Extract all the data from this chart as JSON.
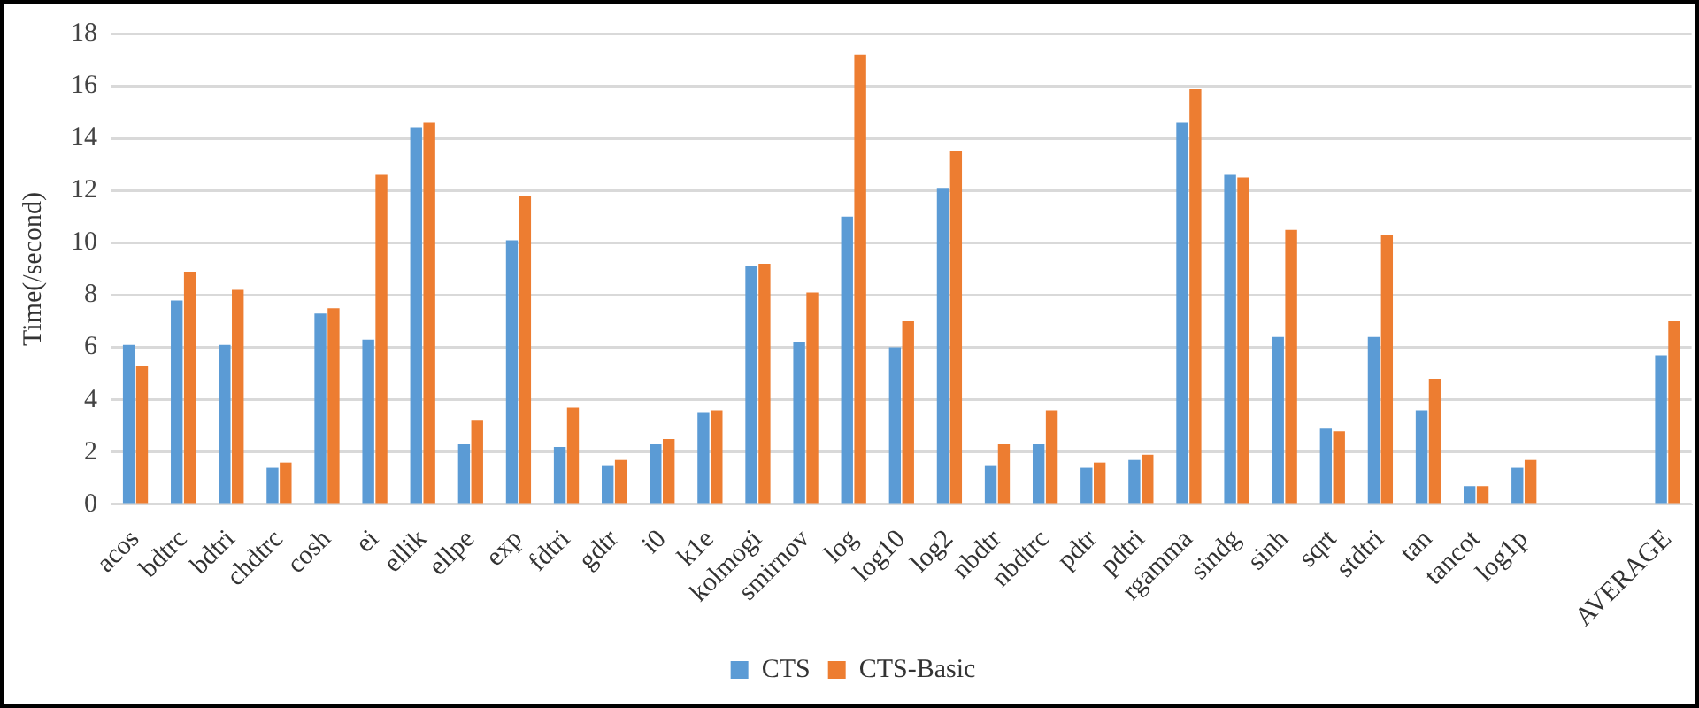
{
  "chart_data": {
    "type": "bar",
    "ylabel": "Time(/second)",
    "categories": [
      "acos",
      "bdtrc",
      "bdtri",
      "chdtrc",
      "cosh",
      "ei",
      "ellik",
      "ellpe",
      "exp",
      "fdtri",
      "gdtr",
      "i0",
      "k1e",
      "kolmogi",
      "smirnov",
      "log",
      "log10",
      "log2",
      "nbdtr",
      "nbdtrc",
      "pdtr",
      "pdtri",
      "rgamma",
      "sindg",
      "sinh",
      "sqrt",
      "stdtri",
      "tan",
      "tancot",
      "log1p",
      null,
      null,
      "AVERAGE"
    ],
    "series": [
      {
        "name": "CTS",
        "color": "#5b9bd5",
        "values": [
          6.1,
          7.8,
          6.1,
          1.4,
          7.3,
          6.3,
          14.4,
          2.3,
          10.1,
          2.2,
          1.5,
          2.3,
          3.5,
          9.1,
          6.2,
          11.0,
          6.0,
          12.1,
          1.5,
          2.3,
          1.4,
          1.7,
          14.6,
          12.6,
          6.4,
          2.9,
          6.4,
          3.6,
          0.7,
          1.4,
          null,
          null,
          5.7
        ]
      },
      {
        "name": "CTS-Basic",
        "color": "#ed7d31",
        "values": [
          5.3,
          8.9,
          8.2,
          1.6,
          7.5,
          12.6,
          14.6,
          3.2,
          11.8,
          3.7,
          1.7,
          2.5,
          3.6,
          9.2,
          8.1,
          17.2,
          7.0,
          13.5,
          2.3,
          3.6,
          1.6,
          1.9,
          15.9,
          12.5,
          10.5,
          2.8,
          10.3,
          4.8,
          0.7,
          1.7,
          null,
          null,
          7.0
        ]
      }
    ],
    "ylim": [
      0,
      18
    ],
    "yticks": [
      0,
      2,
      4,
      6,
      8,
      10,
      12,
      14,
      16,
      18
    ],
    "grid": "y",
    "legend": "bottom"
  }
}
